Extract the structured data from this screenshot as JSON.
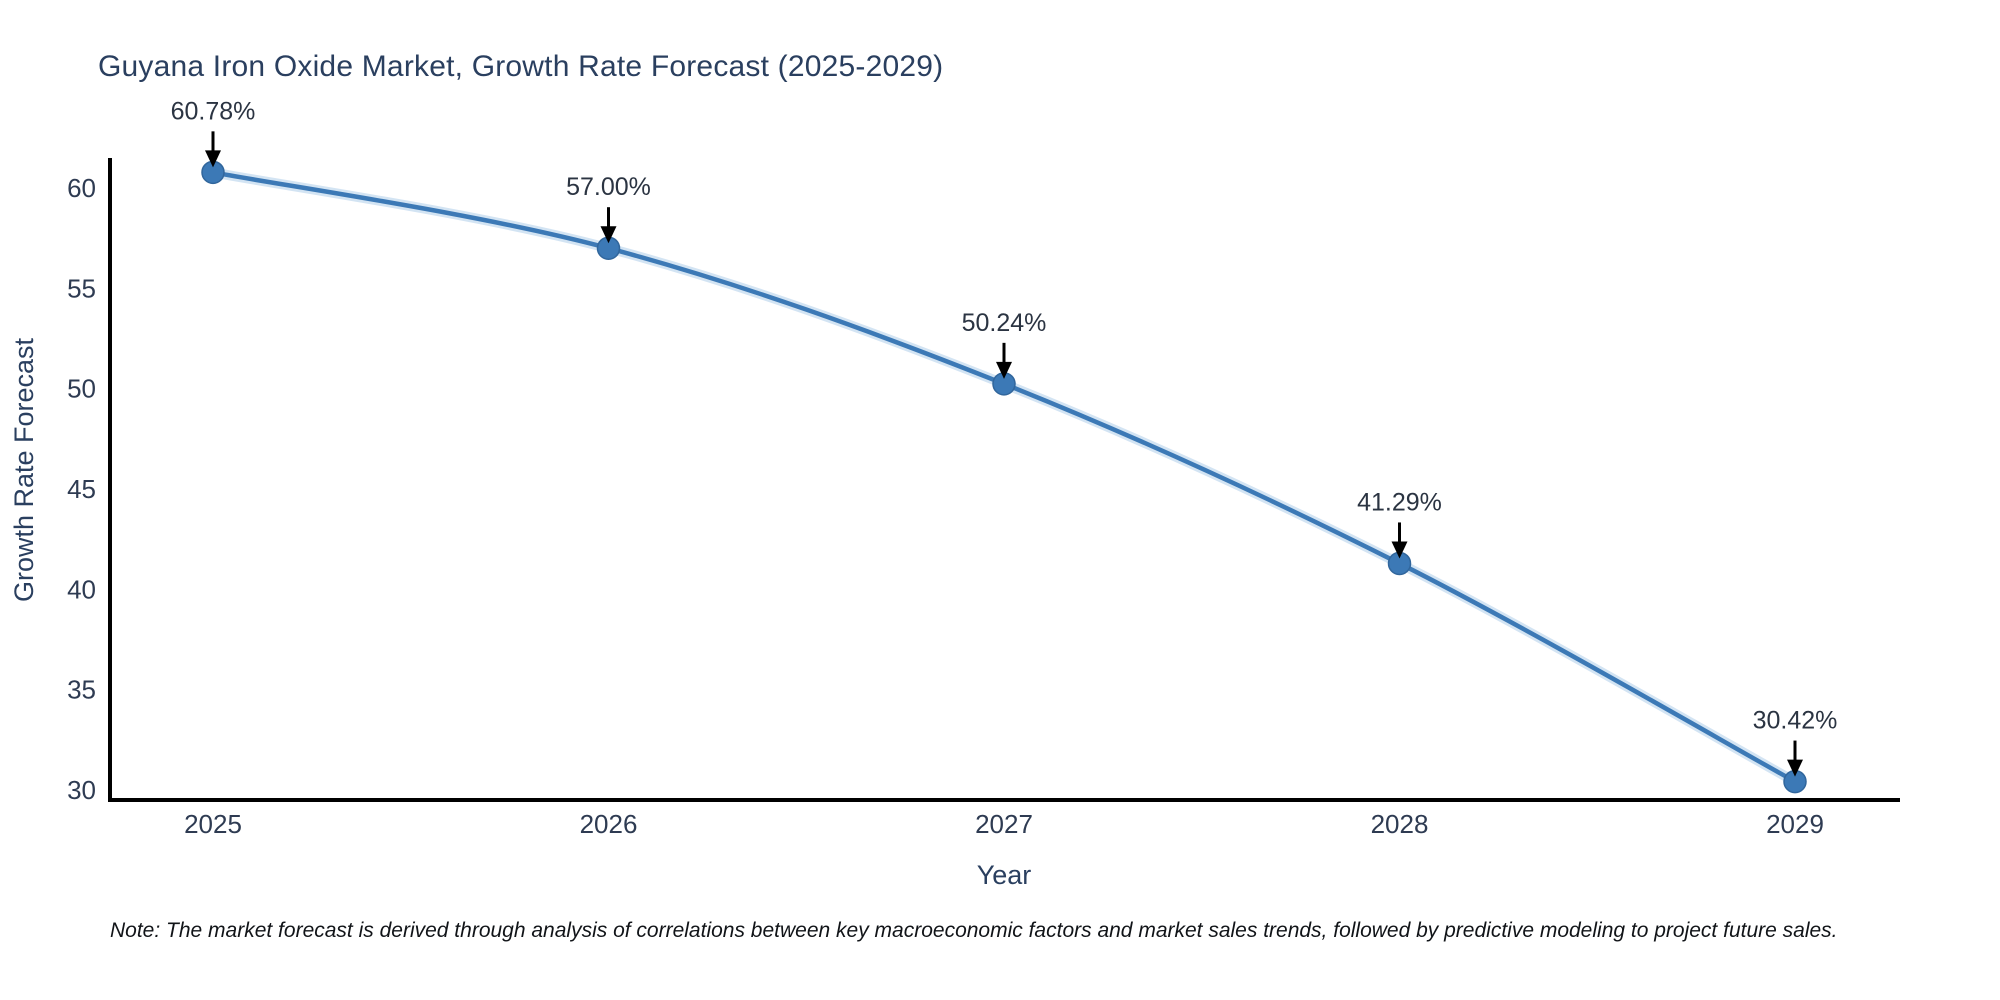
{
  "title": "Guyana Iron Oxide Market, Growth Rate Forecast (2025-2029)",
  "note": "Note: The market forecast is derived through analysis of correlations between key macroeconomic factors and market sales trends, followed by predictive modeling to project future sales.",
  "chart_data": {
    "type": "line",
    "title": "Guyana Iron Oxide Market, Growth Rate Forecast (2025-2029)",
    "xlabel": "Year",
    "ylabel": "Growth Rate Forecast",
    "categories": [
      "2025",
      "2026",
      "2027",
      "2028",
      "2029"
    ],
    "values": [
      60.78,
      57.0,
      50.24,
      41.29,
      30.42
    ],
    "point_labels": [
      "60.78%",
      "57.00%",
      "50.24%",
      "41.29%",
      "30.42%"
    ],
    "series": [
      {
        "name": "Growth Rate Forecast",
        "values": [
          60.78,
          57.0,
          50.24,
          41.29,
          30.42
        ]
      }
    ],
    "yticks": [
      30,
      35,
      40,
      45,
      50,
      55,
      60
    ],
    "ylim": [
      29.5,
      61.5
    ],
    "grid": false,
    "legend": "none",
    "line_shape": "smooth",
    "annotations": "value labels with downward black arrows above each marker",
    "colors": {
      "line": "#3c79b6",
      "line_halo": "#aecde9",
      "marker": "#3c79b6",
      "marker_edge": "#31669c",
      "arrow": "#000000",
      "axis": "#000000",
      "text": "#2a3f5f"
    }
  }
}
